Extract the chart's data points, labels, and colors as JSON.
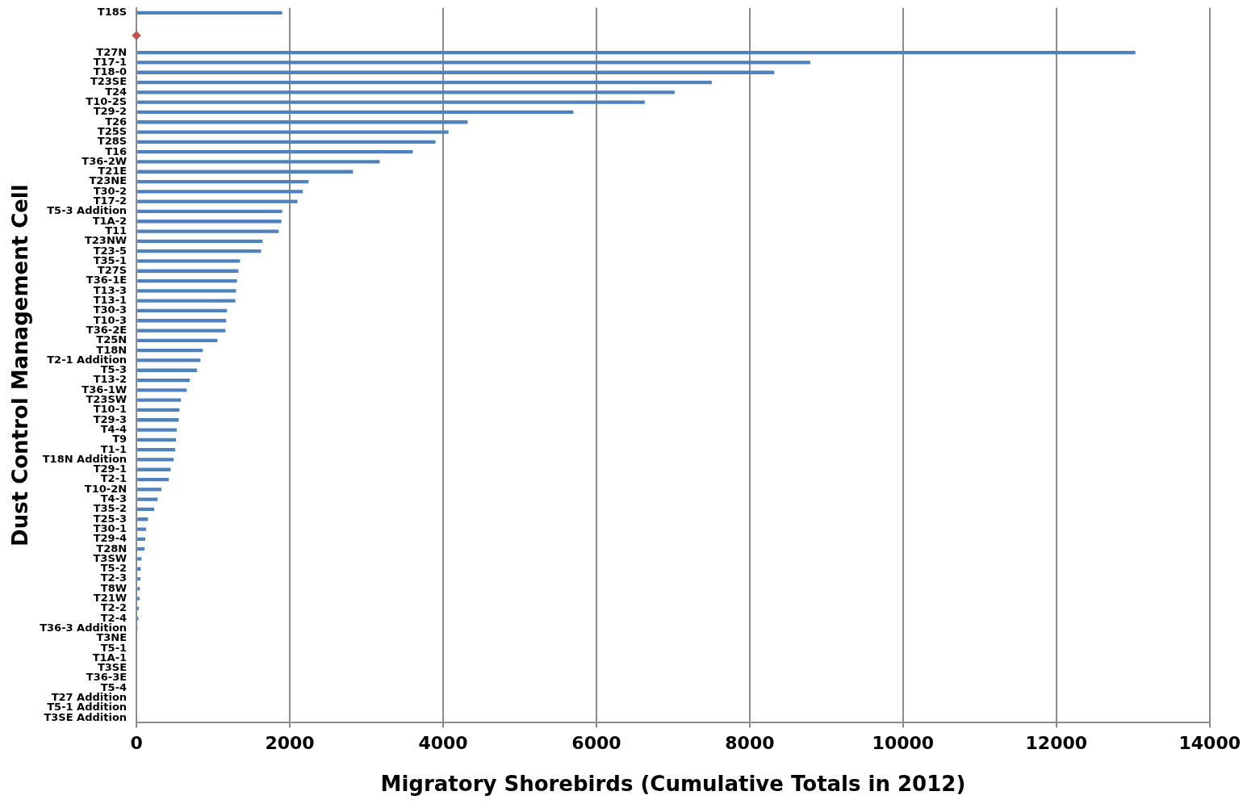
{
  "chart_data": {
    "type": "bar",
    "orientation": "horizontal",
    "xlabel": "Migratory Shorebirds (Cumulative Totals in 2012)",
    "ylabel": "Dust Control Management Cell",
    "categories": [
      "T18S",
      null,
      null,
      null,
      "T27N",
      "T17-1",
      "T18-0",
      "T23SE",
      "T24",
      "T10-2S",
      "T29-2",
      "T26",
      "T25S",
      "T28S",
      "T16",
      "T36-2W",
      "T21E",
      "T23NE",
      "T30-2",
      "T17-2",
      "T5-3 Addition",
      "T1A-2",
      "T11",
      "T23NW",
      "T23-5",
      "T35-1",
      "T27S",
      "T36-1E",
      "T13-3",
      "T13-1",
      "T30-3",
      "T10-3",
      "T36-2E",
      "T25N",
      "T18N",
      "T2-1 Addition",
      "T5-3",
      "T13-2",
      "T36-1W",
      "T23SW",
      "T10-1",
      "T29-3",
      "T4-4",
      "T9",
      "T1-1",
      "T18N Addition",
      "T29-1",
      "T2-1",
      "T10-2N",
      "T4-3",
      "T35-2",
      "T25-3",
      "T30-1",
      "T29-4",
      "T28N",
      "T3SW",
      "T5-2",
      "T2-3",
      "T8W",
      "T21W",
      "T2-2",
      "T2-4",
      "T36-3 Addition",
      "T3NE",
      "T5-1",
      "T1A-1",
      "T3SE",
      "T36-3E",
      "T5-4",
      "T27 Addition",
      "T5-1 Addition",
      "T3SE Addition"
    ],
    "values": [
      1900,
      null,
      null,
      null,
      13030,
      8790,
      8320,
      7505,
      7020,
      6630,
      5700,
      4320,
      4070,
      3900,
      3605,
      3173,
      2825,
      2245,
      2170,
      2100,
      1900,
      1890,
      1855,
      1645,
      1625,
      1350,
      1330,
      1310,
      1300,
      1290,
      1180,
      1170,
      1160,
      1055,
      865,
      835,
      790,
      695,
      655,
      580,
      560,
      550,
      525,
      515,
      505,
      485,
      445,
      420,
      325,
      275,
      230,
      150,
      125,
      115,
      105,
      65,
      55,
      50,
      45,
      40,
      30,
      25,
      15,
      0,
      0,
      0,
      0,
      0,
      0,
      0,
      0,
      0
    ],
    "color": "#4f81bd",
    "xlim": [
      0,
      14000
    ],
    "xticks": [
      0,
      2000,
      4000,
      6000,
      8000,
      10000,
      12000,
      14000
    ],
    "grid": "x",
    "legend": false
  }
}
